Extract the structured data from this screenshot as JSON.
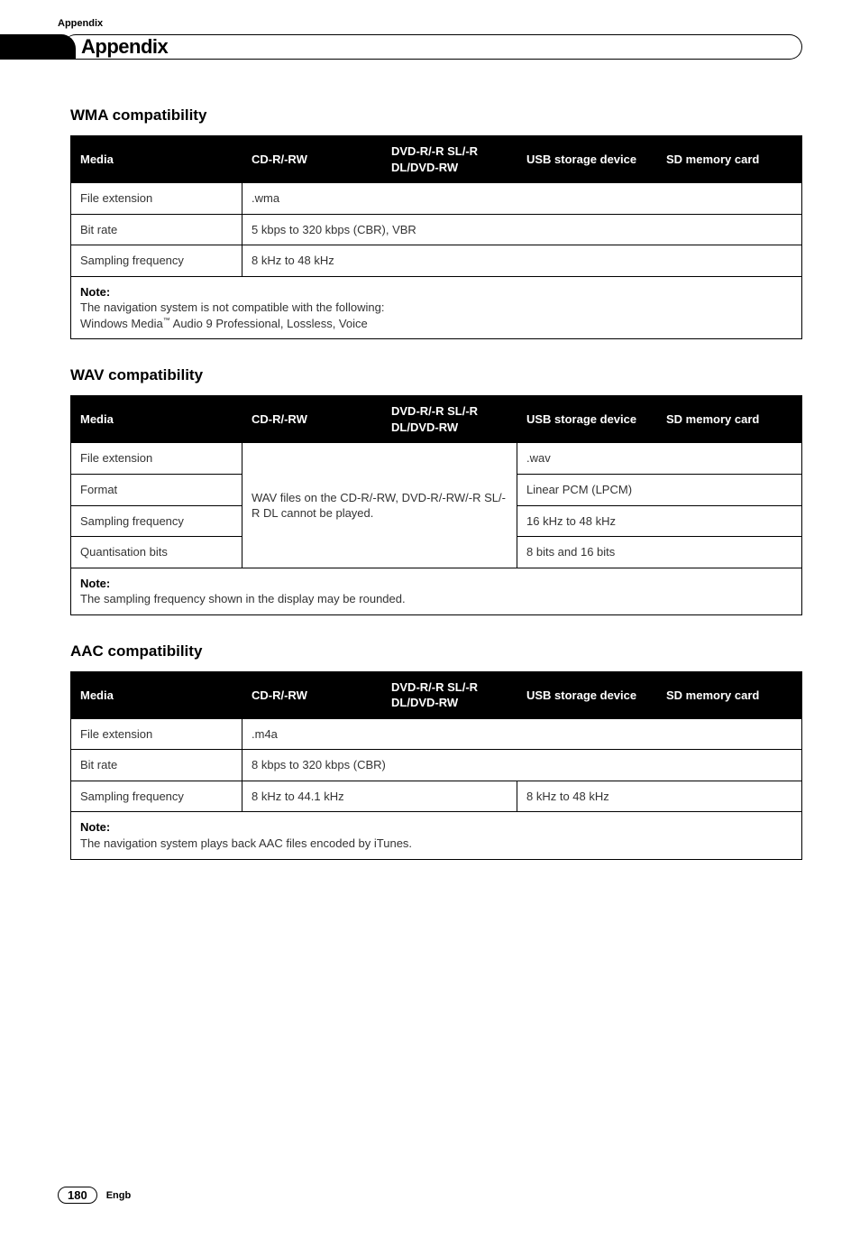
{
  "header_small": "Appendix",
  "page_title": "Appendix",
  "footer": {
    "page": "180",
    "lang": "Engb"
  },
  "columns": {
    "media": "Media",
    "cdr": "CD-R/-RW",
    "dvd": "DVD-R/-R SL/-R DL/DVD-RW",
    "usb": "USB storage device",
    "sd": "SD memory card"
  },
  "wma": {
    "heading": "WMA compatibility",
    "rows": {
      "file_ext_label": "File extension",
      "file_ext_val": ".wma",
      "bitrate_label": "Bit rate",
      "bitrate_val": "5 kbps to 320 kbps (CBR), VBR",
      "samp_label": "Sampling frequency",
      "samp_val": "8 kHz to 48 kHz"
    },
    "note_label": "Note:",
    "note_line1": "The navigation system is not compatible with the following:",
    "note_line2a": "Windows Media",
    "note_line2b": " Audio 9 Professional, Lossless, Voice"
  },
  "wav": {
    "heading": "WAV compatibility",
    "rows": {
      "file_ext_label": "File extension",
      "file_ext_val": ".wav",
      "format_label": "Format",
      "format_val": "Linear PCM (LPCM)",
      "samp_label": "Sampling frequency",
      "samp_val": "16 kHz to 48 kHz",
      "quant_label": "Quantisation bits",
      "quant_val": "8 bits and 16 bits",
      "left_merged": "WAV files on the CD-R/-RW, DVD-R/-RW/-R SL/-R DL cannot be played."
    },
    "note_label": "Note:",
    "note_text": "The sampling frequency shown in the display may be rounded."
  },
  "aac": {
    "heading": "AAC compatibility",
    "rows": {
      "file_ext_label": "File extension",
      "file_ext_val": ".m4a",
      "bitrate_label": "Bit rate",
      "bitrate_val": "8 kbps to 320 kbps (CBR)",
      "samp_label": "Sampling frequency",
      "samp_val_left": "8 kHz to 44.1 kHz",
      "samp_val_right": "8 kHz to 48 kHz"
    },
    "note_label": "Note:",
    "note_text": "The navigation system plays back AAC files encoded by iTunes."
  }
}
